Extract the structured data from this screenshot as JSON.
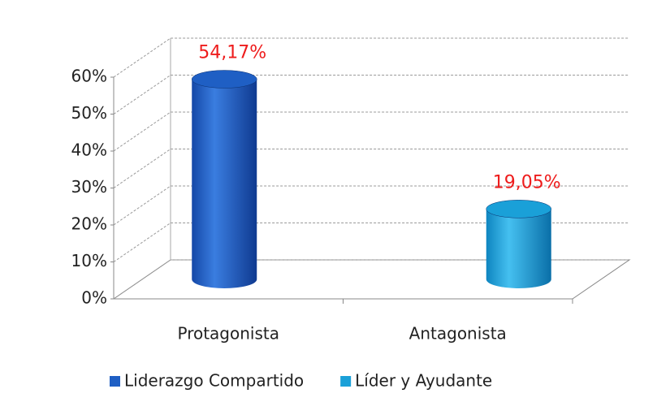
{
  "chart_data": {
    "type": "bar3d",
    "categories": [
      "Protagonista",
      "Antagonista"
    ],
    "series": [
      {
        "name": "Liderazgo Compartido",
        "color": "#1f5fc4",
        "values": [
          54.17,
          null
        ],
        "value_labels": [
          "54,17%",
          null
        ]
      },
      {
        "name": "Líder y Ayudante",
        "color": "#1aa0d8",
        "values": [
          null,
          19.05
        ],
        "value_labels": [
          null,
          "19,05%"
        ]
      }
    ],
    "ylim": [
      0,
      60
    ],
    "yticks": [
      {
        "value": 0,
        "label": "0%"
      },
      {
        "value": 10,
        "label": "10%"
      },
      {
        "value": 20,
        "label": "20%"
      },
      {
        "value": 30,
        "label": "30%"
      },
      {
        "value": 40,
        "label": "40%"
      },
      {
        "value": 50,
        "label": "50%"
      },
      {
        "value": 60,
        "label": "60%"
      }
    ],
    "grid": true,
    "legend": "bottom"
  }
}
